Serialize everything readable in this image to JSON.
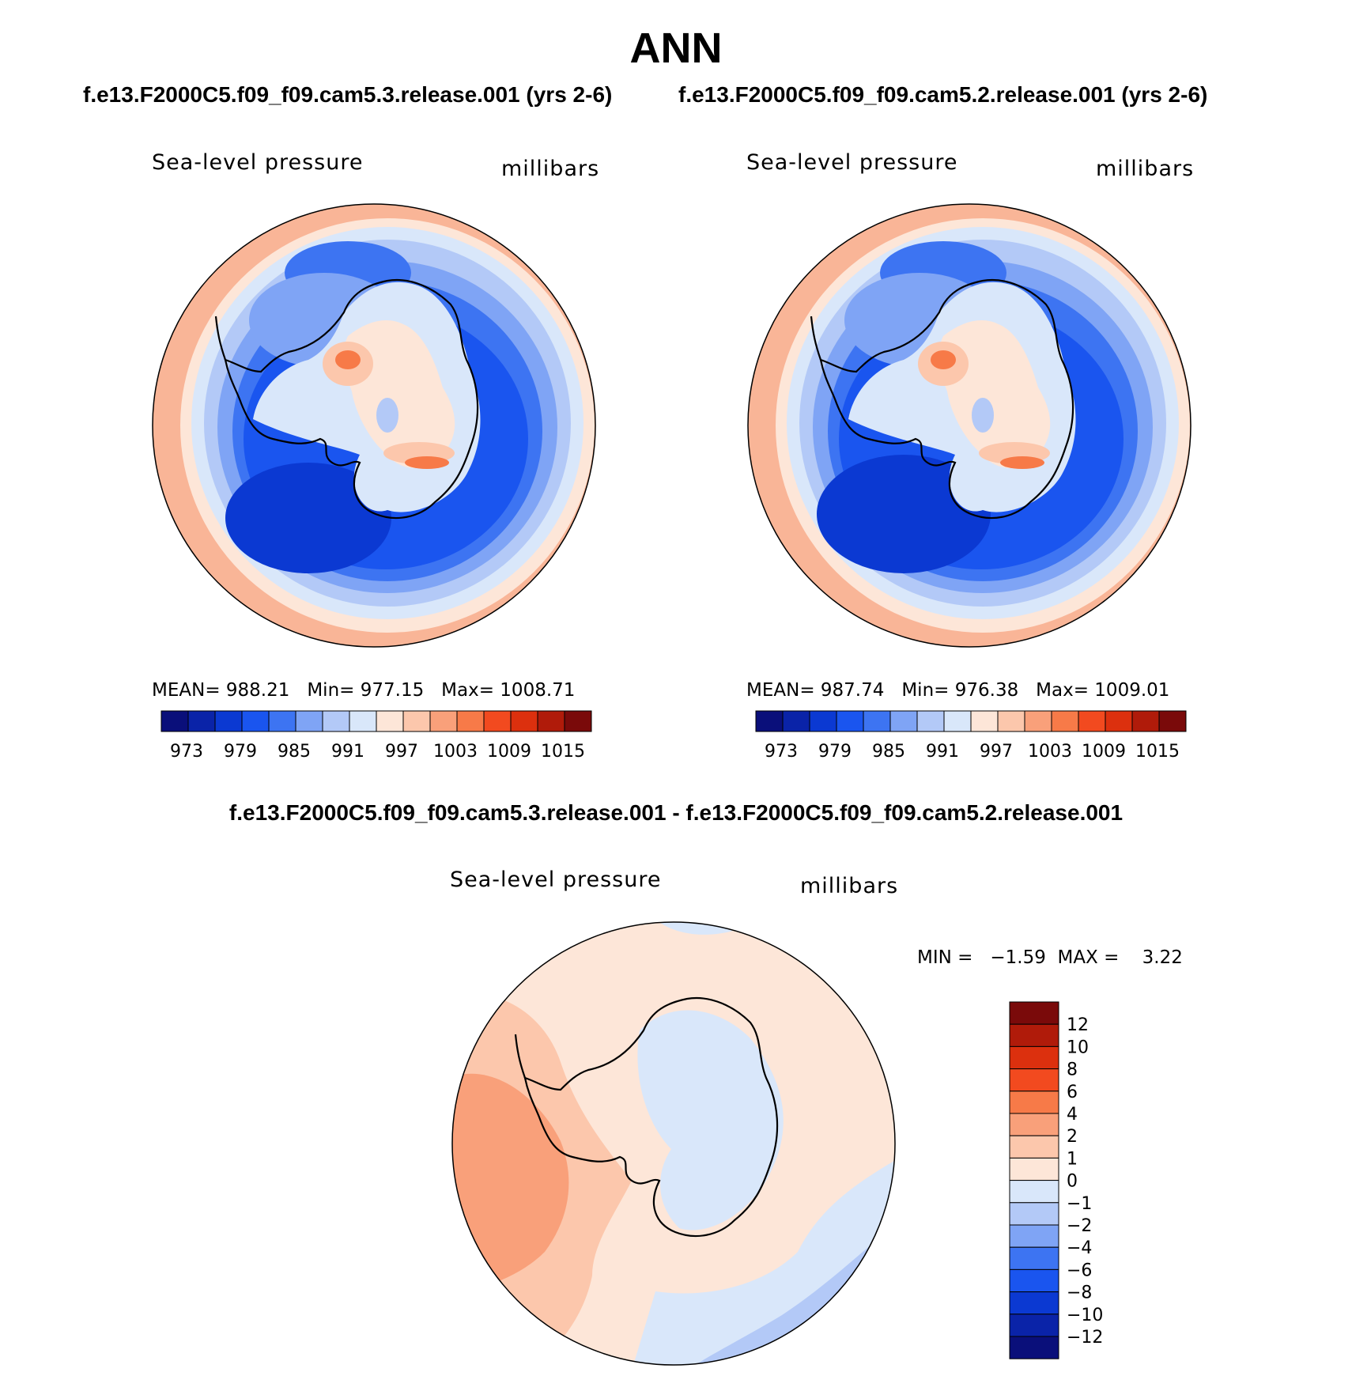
{
  "page_title": "ANN",
  "colors": {
    "fill_colors": [
      "#0a0f7a",
      "#0a23a8",
      "#0b39d2",
      "#1a55ef",
      "#3d74f2",
      "#7fa4f5",
      "#b3c9f7",
      "#d9e7fa",
      "#fde6d8",
      "#fcc7ac",
      "#f9a07a",
      "#f77a48",
      "#f24a1f",
      "#dc300e",
      "#b01b0a",
      "#7a0a0a"
    ],
    "coastline": "#000000"
  },
  "chart_data": [
    {
      "type": "heatmap",
      "panel_heading": "f.e13.F2000C5.f09_f09.cam5.3.release.001 (yrs 2-6)",
      "title": "Sea-level pressure",
      "units": "millibars",
      "projection": "south-polar-stereographic",
      "stats": {
        "mean_label": "MEAN=",
        "mean": "988.21",
        "min_label": "Min=",
        "min": "977.15",
        "max_label": "Max=",
        "max": "1008.71"
      },
      "colorbar_ticks": [
        "973",
        "979",
        "985",
        "991",
        "997",
        "1003",
        "1009",
        "1015"
      ]
    },
    {
      "type": "heatmap",
      "panel_heading": "f.e13.F2000C5.f09_f09.cam5.2.release.001 (yrs 2-6)",
      "title": "Sea-level pressure",
      "units": "millibars",
      "projection": "south-polar-stereographic",
      "stats": {
        "mean_label": "MEAN=",
        "mean": "987.74",
        "min_label": "Min=",
        "min": "976.38",
        "max_label": "Max=",
        "max": "1009.01"
      },
      "colorbar_ticks": [
        "973",
        "979",
        "985",
        "991",
        "997",
        "1003",
        "1009",
        "1015"
      ]
    },
    {
      "type": "heatmap",
      "panel_heading": "f.e13.F2000C5.f09_f09.cam5.3.release.001 - f.e13.F2000C5.f09_f09.cam5.2.release.001",
      "title": "Sea-level pressure",
      "units": "millibars",
      "projection": "south-polar-stereographic",
      "stats": {
        "min_label": "MIN =",
        "min": "−1.59",
        "max_label": "MAX =",
        "max": "3.22"
      },
      "colorbar_ticks": [
        "12",
        "10",
        "8",
        "6",
        "4",
        "2",
        "1",
        "0",
        "−1",
        "−2",
        "−4",
        "−6",
        "−8",
        "−10",
        "−12"
      ],
      "colorbar_colors": [
        "#7a0a0a",
        "#b01b0a",
        "#dc300e",
        "#f24a1f",
        "#f77a48",
        "#f9a07a",
        "#fcc7ac",
        "#fde6d8",
        "#d9e7fa",
        "#b3c9f7",
        "#7fa4f5",
        "#3d74f2",
        "#1a55ef",
        "#0b39d2",
        "#0a23a8",
        "#0a0f7a"
      ]
    }
  ]
}
